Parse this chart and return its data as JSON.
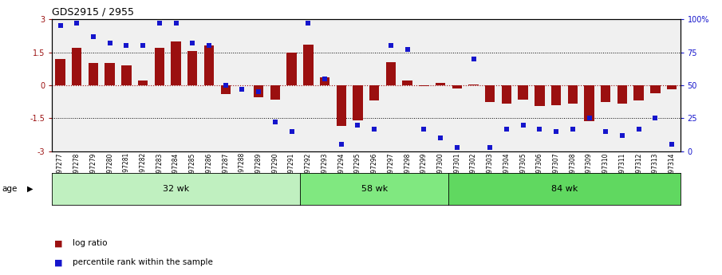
{
  "title": "GDS2915 / 2955",
  "samples": [
    "GSM97277",
    "GSM97278",
    "GSM97279",
    "GSM97280",
    "GSM97281",
    "GSM97282",
    "GSM97283",
    "GSM97284",
    "GSM97285",
    "GSM97286",
    "GSM97287",
    "GSM97288",
    "GSM97289",
    "GSM97290",
    "GSM97291",
    "GSM97292",
    "GSM97293",
    "GSM97294",
    "GSM97295",
    "GSM97296",
    "GSM97297",
    "GSM97298",
    "GSM97299",
    "GSM97300",
    "GSM97301",
    "GSM97302",
    "GSM97303",
    "GSM97304",
    "GSM97305",
    "GSM97306",
    "GSM97307",
    "GSM97308",
    "GSM97309",
    "GSM97310",
    "GSM97311",
    "GSM97312",
    "GSM97313",
    "GSM97314"
  ],
  "log_ratio": [
    1.2,
    1.7,
    1.0,
    1.0,
    0.9,
    0.2,
    1.7,
    2.0,
    1.55,
    1.8,
    -0.4,
    0.0,
    -0.55,
    -0.65,
    1.5,
    1.85,
    0.35,
    -1.85,
    -1.6,
    -0.7,
    1.05,
    0.2,
    -0.05,
    0.1,
    -0.15,
    0.05,
    -0.75,
    -0.85,
    -0.65,
    -0.95,
    -0.9,
    -0.85,
    -1.65,
    -0.75,
    -0.85,
    -0.7,
    -0.35,
    -0.2
  ],
  "percentile": [
    95,
    97,
    87,
    82,
    80,
    80,
    97,
    97,
    82,
    80,
    50,
    47,
    45,
    22,
    15,
    97,
    55,
    5,
    20,
    17,
    80,
    77,
    17,
    10,
    3,
    70,
    3,
    17,
    20,
    17,
    15,
    17,
    25,
    15,
    12,
    17,
    25,
    5
  ],
  "groups": [
    {
      "label": "32 wk",
      "start": 0,
      "end": 15,
      "color": "#c0f0c0"
    },
    {
      "label": "58 wk",
      "start": 15,
      "end": 24,
      "color": "#80e880"
    },
    {
      "label": "84 wk",
      "start": 24,
      "end": 38,
      "color": "#60d860"
    }
  ],
  "bar_color": "#9b1010",
  "dot_color": "#1515cc",
  "bg_color": "#f0f0f0",
  "ylim_left": [
    -3,
    3
  ],
  "ylim_right": [
    0,
    100
  ],
  "yticks_left": [
    -3,
    -1.5,
    0,
    1.5,
    3
  ],
  "yticks_right": [
    0,
    25,
    50,
    75,
    100
  ],
  "ytick_labels_right": [
    "0",
    "25",
    "50",
    "75",
    "100%"
  ],
  "title_fontsize": 9,
  "tick_fontsize": 7,
  "sample_fontsize": 5.5,
  "bar_width": 0.6,
  "dot_size": 18,
  "age_label": "age"
}
